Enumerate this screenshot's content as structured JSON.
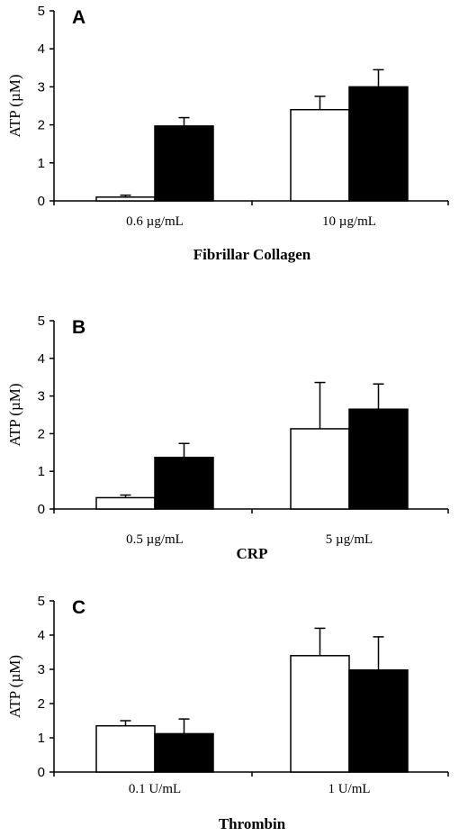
{
  "chart_data": [
    {
      "type": "bar",
      "panel_label": "A",
      "categories": [
        "0.6 µg/mL",
        "10 µg/mL"
      ],
      "series": [
        {
          "values": [
            0.1,
            2.4
          ],
          "errors": [
            0.05,
            0.35
          ],
          "color": "#ffffff"
        },
        {
          "values": [
            1.97,
            3.0
          ],
          "errors": [
            0.22,
            0.45
          ],
          "color": "#000000"
        }
      ],
      "xlabel": "Fibrillar Collagen",
      "ylabel": "ATP (µM)",
      "ylim": [
        0,
        5
      ],
      "yticks": [
        0,
        1,
        2,
        3,
        4,
        5
      ],
      "grid": false
    },
    {
      "type": "bar",
      "panel_label": "B",
      "categories": [
        "0.5 µg/mL",
        "5 µg/mL"
      ],
      "series": [
        {
          "values": [
            0.3,
            2.13
          ],
          "errors": [
            0.07,
            1.23
          ],
          "color": "#ffffff"
        },
        {
          "values": [
            1.37,
            2.65
          ],
          "errors": [
            0.37,
            0.67
          ],
          "color": "#000000"
        }
      ],
      "xlabel": "CRP",
      "ylabel": "ATP (µM)",
      "ylim": [
        0,
        5
      ],
      "yticks": [
        0,
        1,
        2,
        3,
        4,
        5
      ],
      "grid": false
    },
    {
      "type": "bar",
      "panel_label": "C",
      "categories": [
        "0.1 U/mL",
        "1 U/mL"
      ],
      "series": [
        {
          "values": [
            1.35,
            3.4
          ],
          "errors": [
            0.15,
            0.8
          ],
          "color": "#ffffff"
        },
        {
          "values": [
            1.12,
            2.98
          ],
          "errors": [
            0.43,
            0.97
          ],
          "color": "#000000"
        }
      ],
      "xlabel": "Thrombin",
      "ylabel": "ATP (µM)",
      "ylim": [
        0,
        5
      ],
      "yticks": [
        0,
        1,
        2,
        3,
        4,
        5
      ],
      "grid": false
    }
  ]
}
